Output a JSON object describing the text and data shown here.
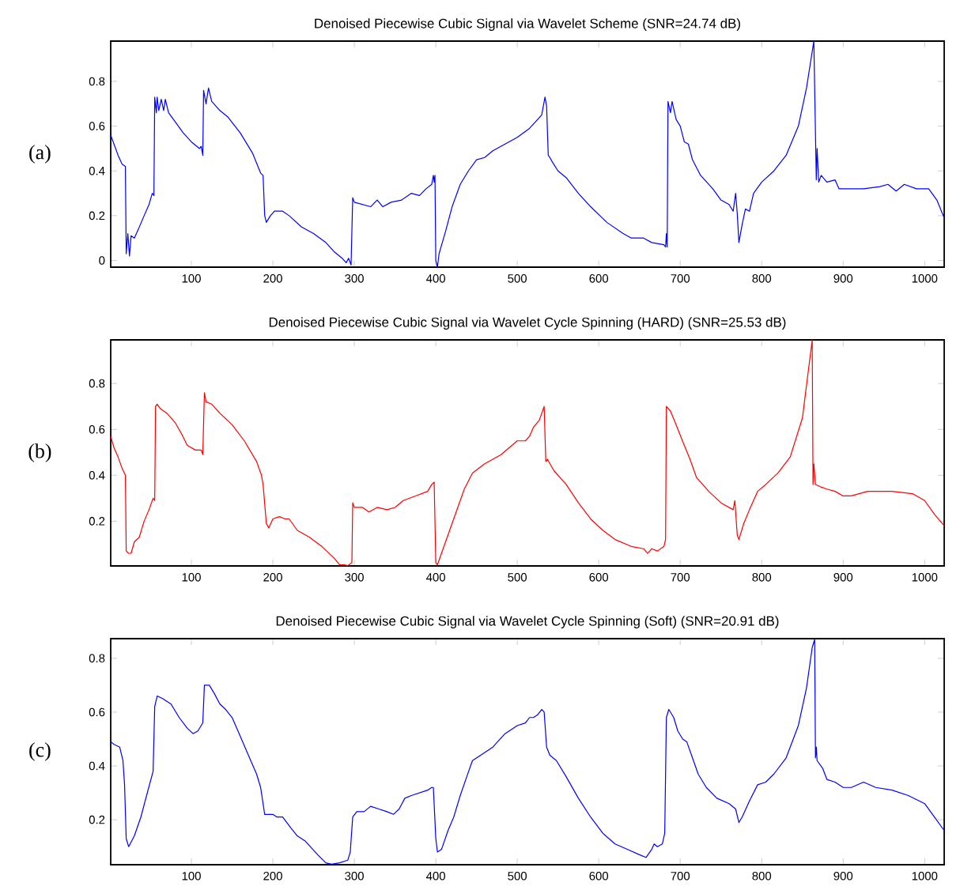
{
  "chart_data": [
    {
      "type": "line",
      "title": "Denoised Piecewise Cubic Signal via Wavelet Scheme (SNR=24.74 dB)",
      "annotations": [
        "(a)"
      ],
      "xlim": [
        1,
        1024
      ],
      "ylim": [
        -0.03,
        0.98
      ],
      "xticks": [
        100,
        200,
        300,
        400,
        500,
        600,
        700,
        800,
        900,
        1000
      ],
      "yticks": [
        0,
        0.2,
        0.4,
        0.6,
        0.8
      ],
      "series": [
        {
          "color": "#0000ff",
          "x": [
            1,
            5,
            10,
            15,
            19,
            20,
            22,
            24,
            26,
            30,
            35,
            42,
            48,
            52,
            54,
            55,
            57,
            58,
            60,
            63,
            66,
            68,
            72,
            80,
            90,
            100,
            110,
            112,
            114,
            115,
            118,
            121,
            125,
            135,
            145,
            160,
            175,
            185,
            188,
            190,
            192,
            197,
            202,
            212,
            220,
            235,
            250,
            265,
            275,
            285,
            290,
            293,
            296,
            298,
            300,
            310,
            320,
            328,
            335,
            345,
            358,
            370,
            380,
            388,
            395,
            397,
            398,
            399,
            400,
            402,
            404,
            408,
            412,
            420,
            430,
            440,
            450,
            460,
            470,
            485,
            500,
            515,
            525,
            530,
            534,
            536,
            538,
            540,
            543,
            550,
            560,
            575,
            590,
            610,
            630,
            640,
            655,
            665,
            680,
            682,
            683,
            684,
            685,
            688,
            690,
            695,
            700,
            705,
            710,
            715,
            725,
            740,
            750,
            760,
            765,
            768,
            770,
            772,
            776,
            780,
            785,
            790,
            800,
            815,
            830,
            845,
            855,
            864,
            867,
            868,
            870,
            873,
            880,
            890,
            895,
            910,
            925,
            945,
            955,
            965,
            975,
            990,
            1005,
            1015,
            1024
          ],
          "values": [
            0.56,
            0.52,
            0.47,
            0.43,
            0.42,
            0.03,
            0.12,
            0.02,
            0.11,
            0.1,
            0.14,
            0.2,
            0.25,
            0.3,
            0.29,
            0.73,
            0.66,
            0.73,
            0.67,
            0.72,
            0.67,
            0.72,
            0.66,
            0.62,
            0.57,
            0.53,
            0.5,
            0.51,
            0.47,
            0.76,
            0.7,
            0.77,
            0.71,
            0.67,
            0.64,
            0.57,
            0.48,
            0.39,
            0.38,
            0.2,
            0.17,
            0.2,
            0.22,
            0.22,
            0.2,
            0.15,
            0.12,
            0.08,
            0.04,
            0.01,
            -0.01,
            0.01,
            -0.02,
            0.28,
            0.26,
            0.25,
            0.24,
            0.27,
            0.24,
            0.26,
            0.27,
            0.3,
            0.29,
            0.32,
            0.34,
            0.38,
            0.35,
            0.38,
            0.0,
            -0.03,
            0.03,
            0.08,
            0.13,
            0.24,
            0.34,
            0.4,
            0.45,
            0.46,
            0.49,
            0.52,
            0.55,
            0.59,
            0.63,
            0.65,
            0.73,
            0.69,
            0.47,
            0.46,
            0.44,
            0.4,
            0.37,
            0.3,
            0.24,
            0.17,
            0.12,
            0.1,
            0.1,
            0.08,
            0.07,
            0.06,
            0.12,
            0.06,
            0.71,
            0.66,
            0.71,
            0.63,
            0.6,
            0.53,
            0.52,
            0.45,
            0.38,
            0.32,
            0.27,
            0.25,
            0.22,
            0.3,
            0.21,
            0.08,
            0.16,
            0.23,
            0.22,
            0.3,
            0.35,
            0.4,
            0.47,
            0.6,
            0.77,
            0.98,
            0.36,
            0.5,
            0.35,
            0.38,
            0.35,
            0.36,
            0.32,
            0.32,
            0.32,
            0.33,
            0.34,
            0.31,
            0.34,
            0.32,
            0.32,
            0.27,
            0.19
          ]
        }
      ]
    },
    {
      "type": "line",
      "title": "Denoised Piecewise Cubic Signal via Wavelet Cycle Spinning (HARD) (SNR=25.53 dB)",
      "annotations": [
        "(b)"
      ],
      "xlim": [
        1,
        1024
      ],
      "ylim": [
        0.005,
        0.99
      ],
      "xticks": [
        100,
        200,
        300,
        400,
        500,
        600,
        700,
        800,
        900,
        1000
      ],
      "yticks": [
        0.2,
        0.4,
        0.6,
        0.8
      ],
      "series": [
        {
          "color": "#ff0000",
          "x": [
            1,
            5,
            10,
            15,
            19,
            20,
            23,
            26,
            30,
            36,
            42,
            48,
            53,
            55,
            56,
            58,
            62,
            70,
            80,
            88,
            95,
            105,
            112,
            114,
            116,
            118,
            125,
            135,
            150,
            165,
            180,
            186,
            188,
            192,
            195,
            200,
            208,
            215,
            220,
            230,
            245,
            260,
            275,
            282,
            288,
            292,
            297,
            298,
            300,
            310,
            318,
            328,
            340,
            350,
            360,
            375,
            390,
            395,
            398,
            400,
            402,
            410,
            420,
            428,
            435,
            445,
            460,
            480,
            500,
            510,
            515,
            520,
            527,
            533,
            535,
            537,
            545,
            560,
            575,
            590,
            605,
            620,
            640,
            655,
            660,
            665,
            672,
            680,
            682,
            683,
            688,
            695,
            705,
            712,
            720,
            735,
            750,
            765,
            767,
            770,
            772,
            778,
            785,
            795,
            805,
            820,
            835,
            850,
            862,
            863,
            864,
            866,
            872,
            880,
            890,
            900,
            910,
            930,
            960,
            985,
            1000,
            1012,
            1024
          ],
          "values": [
            0.57,
            0.52,
            0.48,
            0.43,
            0.4,
            0.07,
            0.06,
            0.06,
            0.11,
            0.13,
            0.2,
            0.25,
            0.3,
            0.29,
            0.7,
            0.71,
            0.69,
            0.67,
            0.63,
            0.58,
            0.53,
            0.51,
            0.51,
            0.49,
            0.76,
            0.72,
            0.71,
            0.67,
            0.62,
            0.55,
            0.46,
            0.4,
            0.36,
            0.19,
            0.17,
            0.21,
            0.22,
            0.21,
            0.21,
            0.16,
            0.13,
            0.09,
            0.04,
            0.01,
            0.01,
            0.006,
            0.02,
            0.28,
            0.26,
            0.26,
            0.24,
            0.26,
            0.25,
            0.26,
            0.29,
            0.31,
            0.33,
            0.36,
            0.37,
            0.02,
            0.01,
            0.09,
            0.19,
            0.27,
            0.34,
            0.41,
            0.45,
            0.49,
            0.55,
            0.55,
            0.57,
            0.61,
            0.64,
            0.7,
            0.46,
            0.47,
            0.42,
            0.36,
            0.28,
            0.21,
            0.16,
            0.12,
            0.09,
            0.08,
            0.06,
            0.08,
            0.07,
            0.09,
            0.12,
            0.7,
            0.68,
            0.62,
            0.53,
            0.47,
            0.39,
            0.33,
            0.28,
            0.25,
            0.29,
            0.14,
            0.12,
            0.19,
            0.25,
            0.33,
            0.36,
            0.41,
            0.48,
            0.65,
            0.99,
            0.36,
            0.45,
            0.36,
            0.35,
            0.34,
            0.33,
            0.31,
            0.31,
            0.33,
            0.33,
            0.32,
            0.29,
            0.23,
            0.18
          ]
        }
      ]
    },
    {
      "type": "line",
      "title": "Denoised Piecewise Cubic Signal via Wavelet Cycle Spinning (Soft) (SNR=20.91 dB)",
      "annotations": [
        "(c)"
      ],
      "xlim": [
        1,
        1024
      ],
      "ylim": [
        0.033,
        0.873
      ],
      "xticks": [
        100,
        200,
        300,
        400,
        500,
        600,
        700,
        800,
        900,
        1000
      ],
      "yticks": [
        0.2,
        0.4,
        0.6,
        0.8
      ],
      "series": [
        {
          "color": "#0000ff",
          "x": [
            1,
            5,
            12,
            16,
            18,
            20,
            23,
            30,
            38,
            45,
            53,
            55,
            58,
            65,
            75,
            85,
            95,
            102,
            108,
            112,
            114,
            116,
            122,
            128,
            135,
            142,
            150,
            160,
            170,
            180,
            185,
            190,
            200,
            205,
            212,
            222,
            230,
            240,
            255,
            265,
            272,
            282,
            292,
            295,
            298,
            303,
            312,
            320,
            330,
            340,
            348,
            355,
            362,
            370,
            380,
            390,
            395,
            397,
            400,
            402,
            407,
            415,
            422,
            430,
            438,
            445,
            455,
            470,
            485,
            500,
            510,
            515,
            520,
            525,
            530,
            533,
            536,
            540,
            548,
            560,
            575,
            590,
            605,
            620,
            635,
            650,
            658,
            665,
            668,
            672,
            678,
            681,
            683,
            686,
            692,
            697,
            703,
            708,
            715,
            722,
            732,
            745,
            760,
            768,
            772,
            776,
            785,
            795,
            805,
            815,
            830,
            845,
            855,
            862,
            865,
            866,
            867,
            868,
            875,
            880,
            890,
            900,
            910,
            925,
            940,
            960,
            980,
            1000,
            1012,
            1024
          ],
          "values": [
            0.49,
            0.48,
            0.47,
            0.42,
            0.33,
            0.13,
            0.1,
            0.14,
            0.21,
            0.29,
            0.38,
            0.62,
            0.66,
            0.65,
            0.63,
            0.58,
            0.54,
            0.52,
            0.53,
            0.55,
            0.56,
            0.7,
            0.7,
            0.67,
            0.63,
            0.61,
            0.58,
            0.51,
            0.44,
            0.37,
            0.32,
            0.22,
            0.22,
            0.21,
            0.21,
            0.17,
            0.14,
            0.12,
            0.07,
            0.04,
            0.035,
            0.04,
            0.05,
            0.08,
            0.21,
            0.23,
            0.23,
            0.25,
            0.24,
            0.23,
            0.22,
            0.24,
            0.28,
            0.29,
            0.3,
            0.31,
            0.32,
            0.32,
            0.13,
            0.08,
            0.09,
            0.16,
            0.21,
            0.29,
            0.36,
            0.42,
            0.44,
            0.47,
            0.52,
            0.55,
            0.56,
            0.58,
            0.58,
            0.59,
            0.61,
            0.6,
            0.47,
            0.44,
            0.42,
            0.36,
            0.28,
            0.21,
            0.15,
            0.11,
            0.09,
            0.07,
            0.06,
            0.09,
            0.11,
            0.1,
            0.11,
            0.15,
            0.58,
            0.61,
            0.58,
            0.53,
            0.5,
            0.49,
            0.43,
            0.37,
            0.32,
            0.28,
            0.26,
            0.24,
            0.19,
            0.21,
            0.27,
            0.33,
            0.34,
            0.37,
            0.43,
            0.55,
            0.69,
            0.84,
            0.87,
            0.43,
            0.47,
            0.42,
            0.39,
            0.35,
            0.34,
            0.32,
            0.32,
            0.34,
            0.32,
            0.31,
            0.29,
            0.26,
            0.21,
            0.16
          ]
        }
      ]
    }
  ]
}
